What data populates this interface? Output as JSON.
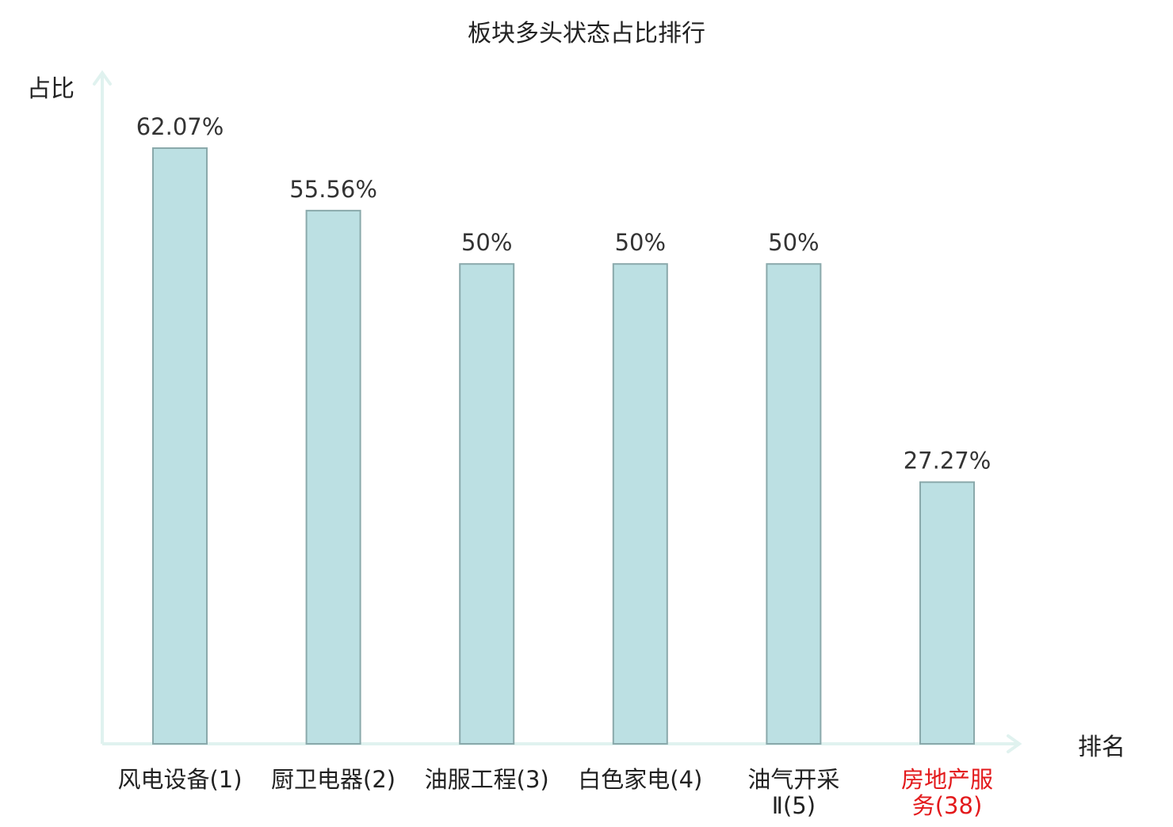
{
  "chart_data": {
    "type": "bar",
    "title": "板块多头状态占比排行",
    "ylabel": "占比",
    "xlabel": "排名",
    "categories": [
      [
        "风电设备(1)"
      ],
      [
        "厨卫电器(2)"
      ],
      [
        "油服工程(3)"
      ],
      [
        "白色家电(4)"
      ],
      [
        "油气开采",
        "Ⅱ(5)"
      ],
      [
        "房地产服",
        "务(38)"
      ]
    ],
    "values": [
      62.07,
      55.56,
      50,
      50,
      50,
      27.27
    ],
    "value_labels": [
      "62.07%",
      "55.56%",
      "50%",
      "50%",
      "50%",
      "27.27%"
    ],
    "highlight_index": 5,
    "ylim": [
      0,
      62.07
    ],
    "grid": false,
    "legend": "none",
    "colors": {
      "bar_fill": "#bce0e3",
      "bar_stroke": "#8aa9ab",
      "axis": "#e0f2ef",
      "text": "#222222",
      "value_text": "#333333",
      "highlight_text": "#e31a1c"
    }
  }
}
